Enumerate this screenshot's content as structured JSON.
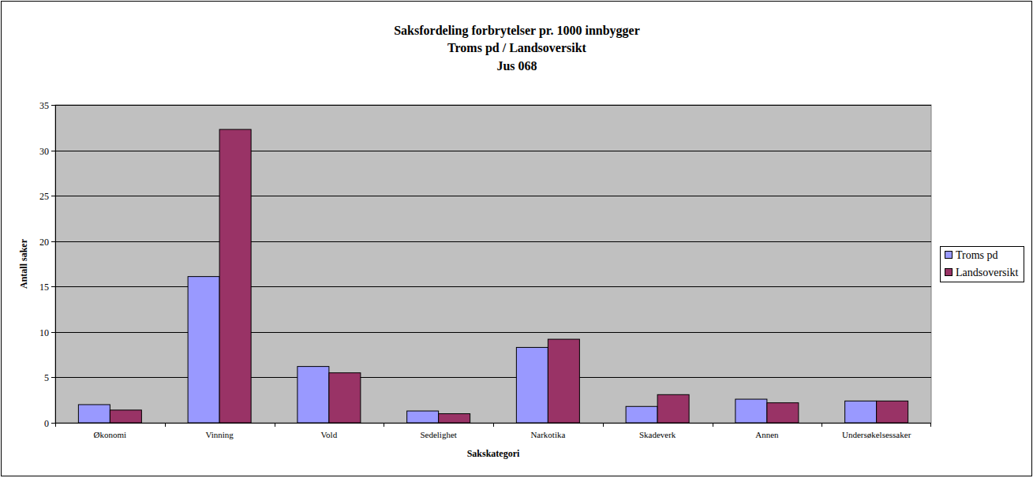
{
  "chart_data": {
    "type": "bar",
    "title": "Saksfordeling forbrytelser pr. 1000 innbygger",
    "subtitle": [
      "Troms pd / Landsoversikt",
      "Jus 068"
    ],
    "x_label": "Sakskategori",
    "y_label": "Antall saker",
    "categories": [
      "Økonomi",
      "Vinning",
      "Vold",
      "Sedelighet",
      "Narkotika",
      "Skadeverk",
      "Annen",
      "Undersøkelsessaker"
    ],
    "series": [
      {
        "name": "Troms pd",
        "color": "#9999ff",
        "values": [
          2.0,
          16.1,
          6.2,
          1.3,
          8.3,
          1.8,
          2.6,
          2.4
        ]
      },
      {
        "name": "Landsoversikt",
        "color": "#993366",
        "values": [
          1.4,
          32.3,
          5.5,
          1.0,
          9.2,
          3.1,
          2.2,
          2.4
        ]
      }
    ],
    "ylim": [
      0,
      35
    ],
    "yticks": [
      0,
      5,
      10,
      15,
      20,
      25,
      30,
      35
    ],
    "grid": true,
    "legend": "right"
  }
}
